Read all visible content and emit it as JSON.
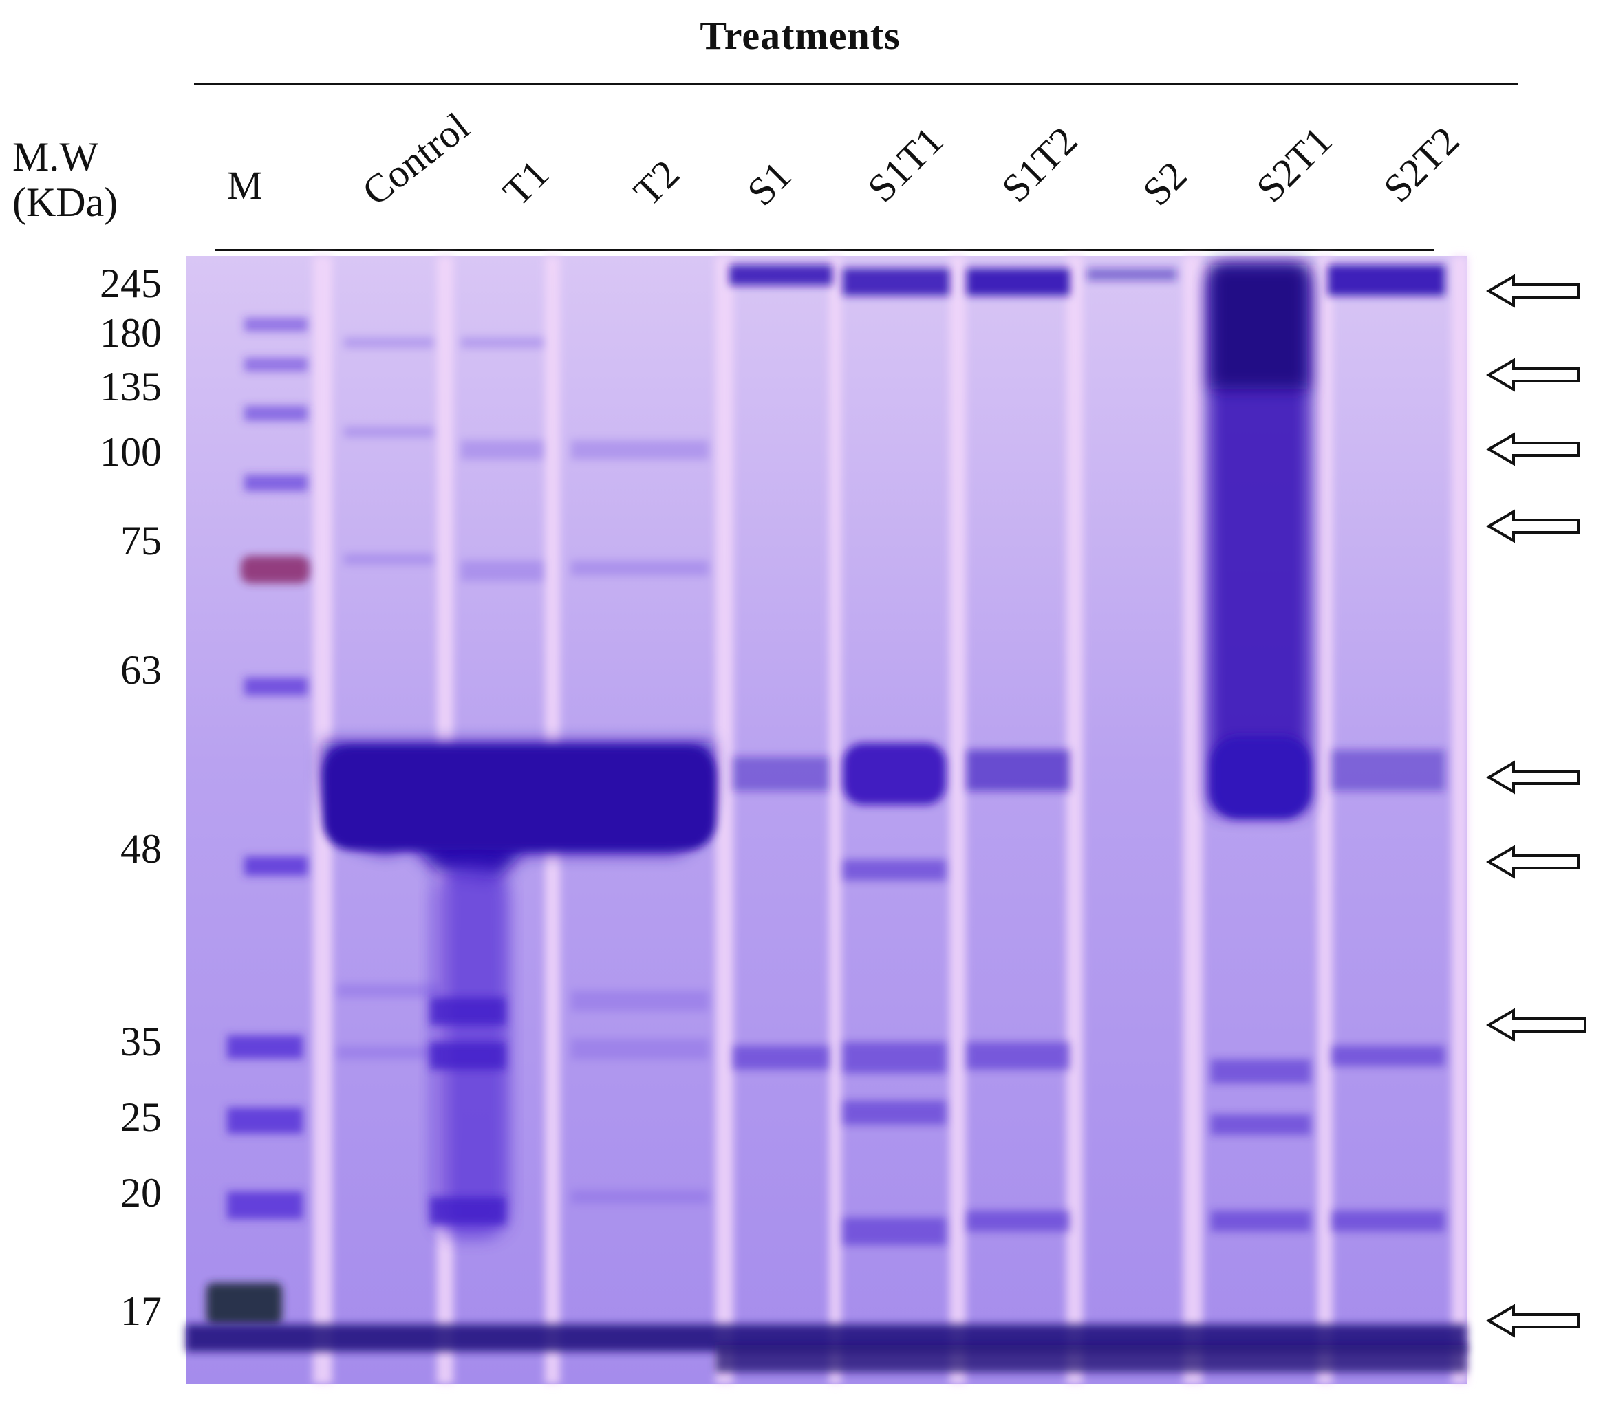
{
  "figure": {
    "title": "Treatments",
    "mw_label_line1": "M.W",
    "mw_label_line2": "(KDa)",
    "marker_label": "M",
    "lanes": [
      "Control",
      "T1",
      "T2",
      "S1",
      "S1T1",
      "S1T2",
      "S2",
      "S2T1",
      "S2T2"
    ],
    "mw_ticks": [
      "245",
      "180",
      "135",
      "100",
      "75",
      "63",
      "48",
      "35",
      "25",
      "20",
      "17"
    ],
    "arrow_count": 8,
    "colors": {
      "gel_background": "#b8a4f0",
      "band_dark": "#3416b8",
      "band_light": "#7f5fe0",
      "lane_separator": "#f1d2f8",
      "marker_band_red": "#8a2b6c"
    }
  }
}
